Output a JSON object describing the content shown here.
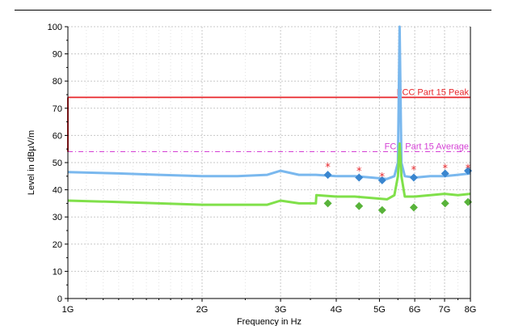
{
  "chart_data": {
    "type": "line",
    "title": "",
    "xlabel": "Frequency in Hz",
    "ylabel": "Level in dBµV/m",
    "x_scale": "log",
    "xlim": [
      1000000000,
      8000000000
    ],
    "ylim": [
      0,
      100
    ],
    "grid": true,
    "x_ticks": [
      {
        "value": 1000000000,
        "label": "1G"
      },
      {
        "value": 2000000000,
        "label": "2G"
      },
      {
        "value": 3000000000,
        "label": "3G"
      },
      {
        "value": 4000000000,
        "label": "4G"
      },
      {
        "value": 5000000000,
        "label": "5G"
      },
      {
        "value": 6000000000,
        "label": "6G"
      },
      {
        "value": 7000000000,
        "label": "7G"
      },
      {
        "value": 8000000000,
        "label": "8G"
      }
    ],
    "y_ticks": [
      0,
      10,
      20,
      30,
      40,
      50,
      60,
      70,
      80,
      90,
      100
    ],
    "limit_lines": [
      {
        "label": "FCC Part 15  Peak",
        "value": 74,
        "color": "#e8262b",
        "style": "solid"
      },
      {
        "label": "FCC Part 15  Average",
        "value": 54,
        "color": "#d43fd4",
        "style": "dashdot"
      }
    ],
    "series": [
      {
        "color": "#7ab8ee",
        "x": [
          1000000000,
          1300000000,
          1600000000,
          2000000000,
          2400000000,
          2800000000,
          3000000000,
          3300000000,
          3600000000,
          4000000000,
          4400000000,
          4800000000,
          5200000000,
          5400000000,
          5500000000,
          5550000000,
          5600000000,
          5700000000,
          6000000000,
          6500000000,
          7000000000,
          7500000000,
          8000000000
        ],
        "values": [
          46.5,
          46,
          45.5,
          45,
          45,
          45.5,
          47,
          45.5,
          45.5,
          45,
          45,
          44.5,
          44,
          45,
          50,
          100,
          50,
          45,
          44.5,
          45,
          45,
          45.5,
          46
        ]
      },
      {
        "color": "#80e04a",
        "x": [
          1000000000,
          1300000000,
          1600000000,
          2000000000,
          2400000000,
          2800000000,
          3000000000,
          3300000000,
          3600000000,
          3610000000,
          4000000000,
          4400000000,
          4800000000,
          5200000000,
          5400000000,
          5500000000,
          5550000000,
          5600000000,
          5700000000,
          6000000000,
          6500000000,
          7000000000,
          7500000000,
          8000000000
        ],
        "values": [
          36,
          35.5,
          35,
          34.5,
          34.5,
          34.5,
          36,
          35,
          35,
          38,
          37.5,
          37.5,
          37,
          36.5,
          38,
          45,
          57,
          45,
          37.5,
          37.5,
          38,
          38.5,
          38,
          38.5
        ]
      }
    ],
    "markers": {
      "peak_stars": {
        "color": "#e8262b",
        "x": [
          3830000000,
          4500000000,
          5070000000,
          5970000000,
          7020000000,
          7900000000
        ],
        "values": [
          48.5,
          47,
          45,
          47.5,
          48,
          48
        ]
      },
      "peak_diamonds": {
        "color": "#3a86cf",
        "x": [
          3830000000,
          4500000000,
          5070000000,
          5970000000,
          7020000000,
          7900000000
        ],
        "values": [
          45.5,
          44.5,
          43.5,
          44.5,
          46,
          47
        ]
      },
      "average_diamonds": {
        "color": "#58b33a",
        "x": [
          3830000000,
          4500000000,
          5070000000,
          5970000000,
          7020000000,
          7900000000
        ],
        "values": [
          35,
          34,
          32.5,
          33.5,
          35,
          35.5
        ]
      }
    }
  }
}
